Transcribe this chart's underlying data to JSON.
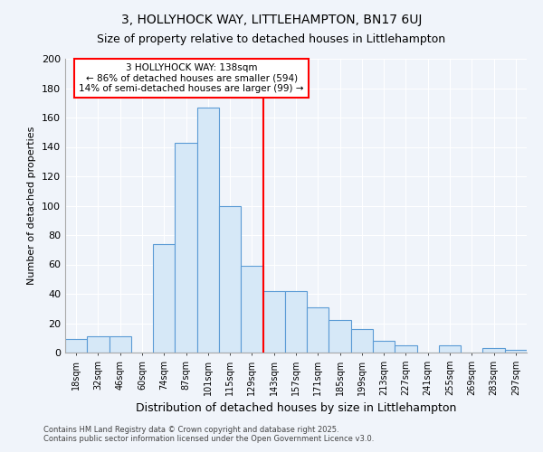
{
  "title": "3, HOLLYHOCK WAY, LITTLEHAMPTON, BN17 6UJ",
  "subtitle": "Size of property relative to detached houses in Littlehampton",
  "xlabel": "Distribution of detached houses by size in Littlehampton",
  "ylabel": "Number of detached properties",
  "bin_labels": [
    "18sqm",
    "32sqm",
    "46sqm",
    "60sqm",
    "74sqm",
    "87sqm",
    "101sqm",
    "115sqm",
    "129sqm",
    "143sqm",
    "157sqm",
    "171sqm",
    "185sqm",
    "199sqm",
    "213sqm",
    "227sqm",
    "241sqm",
    "255sqm",
    "269sqm",
    "283sqm",
    "297sqm"
  ],
  "bar_heights": [
    9,
    11,
    11,
    0,
    74,
    143,
    167,
    100,
    59,
    42,
    42,
    31,
    22,
    16,
    8,
    5,
    0,
    5,
    0,
    3,
    2
  ],
  "bar_color": "#d6e8f7",
  "bar_edge_color": "#5b9bd5",
  "vline_x_index": 9,
  "vline_color": "red",
  "annotation_title": "3 HOLLYHOCK WAY: 138sqm",
  "annotation_line1": "← 86% of detached houses are smaller (594)",
  "annotation_line2": "14% of semi-detached houses are larger (99) →",
  "annotation_box_color": "white",
  "annotation_box_edge_color": "red",
  "ylim": [
    0,
    200
  ],
  "yticks": [
    0,
    20,
    40,
    60,
    80,
    100,
    120,
    140,
    160,
    180,
    200
  ],
  "footer1": "Contains HM Land Registry data © Crown copyright and database right 2025.",
  "footer2": "Contains public sector information licensed under the Open Government Licence v3.0.",
  "background_color": "#f0f4fa",
  "grid_color": "#ffffff",
  "title_fontsize": 10,
  "subtitle_fontsize": 9
}
